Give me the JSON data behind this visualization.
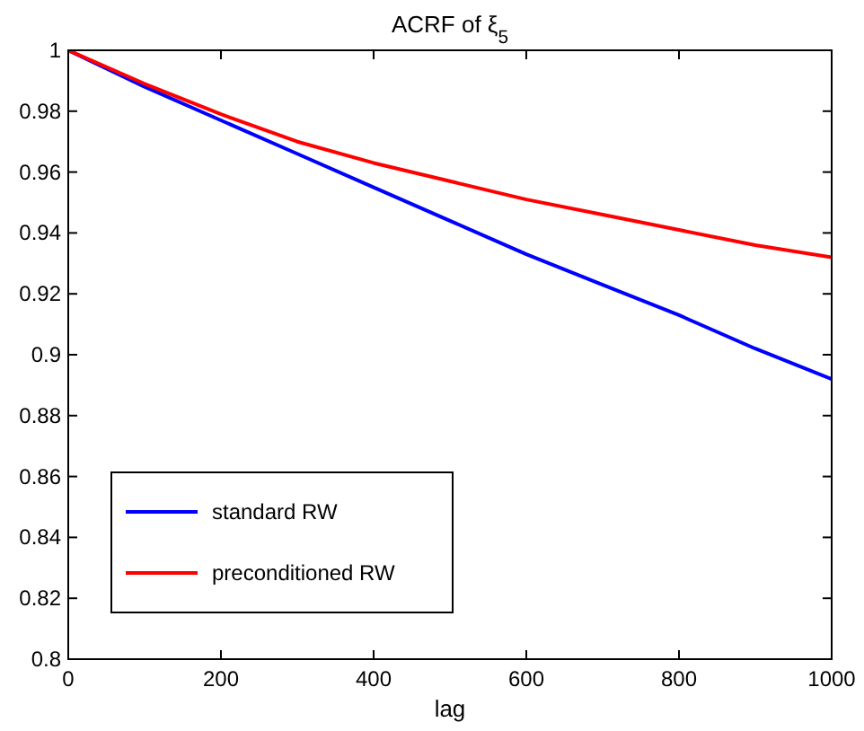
{
  "chart_data": {
    "type": "line",
    "title": "ACRF of ξ$_{5}$",
    "xlabel": "lag",
    "x": [
      0,
      100,
      200,
      300,
      400,
      500,
      600,
      700,
      800,
      900,
      1000
    ],
    "series": [
      {
        "name": "standard RW",
        "color": "#0000ff",
        "values": [
          1,
          0.988,
          0.977,
          0.966,
          0.955,
          0.944,
          0.933,
          0.923,
          0.913,
          0.902,
          0.892
        ]
      },
      {
        "name": "preconditioned RW",
        "color": "#ff0000",
        "values": [
          1,
          0.989,
          0.979,
          0.97,
          0.963,
          0.957,
          0.951,
          0.946,
          0.941,
          0.936,
          0.932
        ]
      }
    ],
    "xlim": [
      0,
      1000
    ],
    "xticks": [
      0,
      200,
      400,
      600,
      800,
      1000
    ],
    "ylim": [
      0.8,
      1
    ],
    "yticks": [
      0.8,
      0.82,
      0.84,
      0.86,
      0.88,
      0.9,
      0.92,
      0.94,
      0.96,
      0.98,
      1
    ],
    "grid": false,
    "legend": "bottom left",
    "marker": "none",
    "line_style": "solid"
  }
}
